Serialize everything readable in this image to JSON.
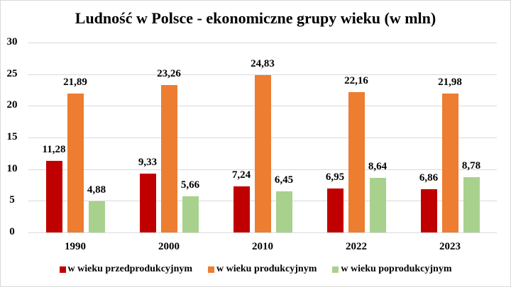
{
  "chart_data": {
    "type": "bar",
    "title": "Ludność w Polsce - ekonomiczne grupy wieku (w mln)",
    "xlabel": "",
    "ylabel": "",
    "ylim": [
      0,
      30
    ],
    "yticks": [
      "0",
      "5",
      "10",
      "15",
      "20",
      "25",
      "30"
    ],
    "grid": true,
    "legend_position": "bottom",
    "categories": [
      "1990",
      "2000",
      "2010",
      "2022",
      "2023"
    ],
    "series": [
      {
        "name": "w wieku przedprodukcyjnym",
        "color": "#c00000",
        "values": [
          11.28,
          9.33,
          7.24,
          6.95,
          6.86
        ],
        "labels": [
          "11,28",
          "9,33",
          "7,24",
          "6,95",
          "6,86"
        ]
      },
      {
        "name": "w wieku produkcyjnym",
        "color": "#ed7d31",
        "values": [
          21.89,
          23.26,
          24.83,
          22.16,
          21.98
        ],
        "labels": [
          "21,89",
          "23,26",
          "24,83",
          "22,16",
          "21,98"
        ]
      },
      {
        "name": "w wieku poprodukcyjnym",
        "color": "#a9d18e",
        "values": [
          4.88,
          5.66,
          6.45,
          8.64,
          8.78
        ],
        "labels": [
          "4,88",
          "5,66",
          "6,45",
          "8,64",
          "8,78"
        ]
      }
    ]
  }
}
